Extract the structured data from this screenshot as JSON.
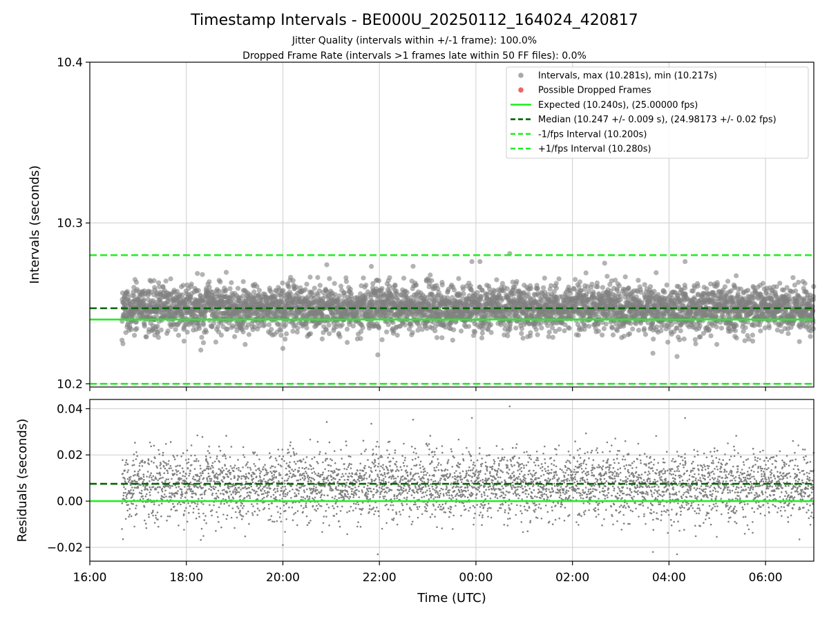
{
  "figure": {
    "title": "Timestamp Intervals - BE000U_20250112_164024_420817",
    "subtitle1": "Jitter Quality (intervals within +/-1 frame): 100.0%",
    "subtitle2": "Dropped Frame Rate (intervals >1 frames late within 50 FF files): 0.0%"
  },
  "chart_data": [
    {
      "type": "scatter",
      "name": "intervals-panel",
      "xlabel": "",
      "ylabel": "Intervals (seconds)",
      "x_unit": "hours since 16:00 UTC on the axis start",
      "xlim": [
        "16:00",
        "07:00"
      ],
      "ylim": [
        10.198,
        10.4
      ],
      "yticks": [
        "10.2",
        "10.3",
        "10.4"
      ],
      "grid": true,
      "legend_position": "top-right",
      "scatter_summary": {
        "count_approx": 4400,
        "x_range": [
          "16:40",
          "07:00"
        ],
        "max": 10.281,
        "min": 10.217,
        "median": 10.247,
        "spread_std": 0.009
      },
      "lines": [
        {
          "name": "Expected (10.240s), (25.00000 fps)",
          "y": 10.24,
          "style": "solid",
          "color": "#22ee22"
        },
        {
          "name": "Median (10.247 +/- 0.009 s), (24.98173 +/- 0.02 fps)",
          "y": 10.247,
          "style": "dashed",
          "color": "#006400"
        },
        {
          "name": "-1/fps Interval (10.200s)",
          "y": 10.2,
          "style": "dashed",
          "color": "#22ee22"
        },
        {
          "name": "+1/fps Interval (10.280s)",
          "y": 10.28,
          "style": "dashed",
          "color": "#22ee22"
        }
      ],
      "legend": [
        {
          "label": "Intervals, max (10.281s), min (10.217s)",
          "marker": "dot",
          "color": "#a9a9a9"
        },
        {
          "label": "Possible Dropped Frames",
          "marker": "dot",
          "color": "#ee6666"
        },
        {
          "label": "Expected (10.240s), (25.00000 fps)",
          "marker": "solid",
          "color": "#22ee22"
        },
        {
          "label": "Median (10.247 +/- 0.009 s), (24.98173 +/- 0.02 fps)",
          "marker": "dashed",
          "color": "#006400"
        },
        {
          "label": "-1/fps Interval (10.200s)",
          "marker": "dashed",
          "color": "#22ee22"
        },
        {
          "label": "+1/fps Interval (10.280s)",
          "marker": "dashed",
          "color": "#22ee22"
        }
      ],
      "notable_points": [
        {
          "x": "00:42",
          "y": 10.281
        },
        {
          "x": "23:55",
          "y": 10.276
        },
        {
          "x": "00:05",
          "y": 10.276
        },
        {
          "x": "04:20",
          "y": 10.276
        },
        {
          "x": "02:40",
          "y": 10.275
        },
        {
          "x": "21:50",
          "y": 10.273
        },
        {
          "x": "20:00",
          "y": 10.222
        },
        {
          "x": "21:58",
          "y": 10.218
        },
        {
          "x": "04:10",
          "y": 10.217
        },
        {
          "x": "03:40",
          "y": 10.219
        }
      ]
    },
    {
      "type": "scatter",
      "name": "residuals-panel",
      "xlabel": "Time (UTC)",
      "ylabel": "Residuals (seconds)",
      "xlim": [
        "16:00",
        "07:00"
      ],
      "xticks": [
        "16:00",
        "18:00",
        "20:00",
        "22:00",
        "00:00",
        "02:00",
        "04:00",
        "06:00"
      ],
      "ylim": [
        -0.026,
        0.044
      ],
      "yticks": [
        "−0.02",
        "0.00",
        "0.02",
        "0.04"
      ],
      "grid": true,
      "lines": [
        {
          "name": "zero",
          "y": 0.0,
          "style": "solid",
          "color": "#22ee22"
        },
        {
          "name": "median residual",
          "y": 0.0075,
          "style": "dashed",
          "color": "#006400"
        }
      ],
      "scatter_summary": {
        "count_approx": 4400,
        "x_range": [
          "16:40",
          "07:00"
        ],
        "max": 0.041,
        "min": -0.023,
        "median": 0.0075
      },
      "notable_points": [
        {
          "x": "00:42",
          "y": 0.041
        },
        {
          "x": "23:55",
          "y": 0.036
        },
        {
          "x": "21:50",
          "y": 0.0335
        },
        {
          "x": "04:20",
          "y": 0.036
        },
        {
          "x": "20:00",
          "y": -0.019
        },
        {
          "x": "21:58",
          "y": -0.023
        },
        {
          "x": "04:10",
          "y": -0.023
        },
        {
          "x": "03:40",
          "y": -0.022
        }
      ]
    }
  ],
  "colors": {
    "scatter_grey": "#808080",
    "expected_green": "#22ee22",
    "median_darkgreen": "#006400",
    "dropped_red": "#ee6666",
    "grid": "#cccccc"
  }
}
